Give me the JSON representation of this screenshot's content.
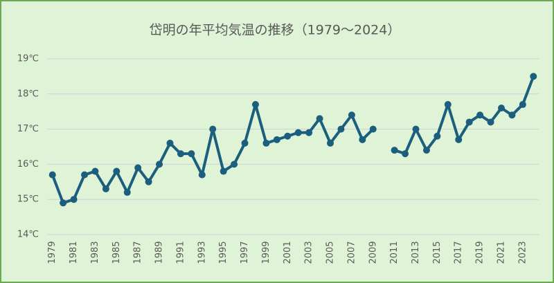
{
  "chart_data": {
    "type": "line",
    "title": "岱明の年平均気温の推移（1979～2024）",
    "categories": [
      "1979",
      null,
      "1981",
      null,
      "1983",
      null,
      "1985",
      null,
      "1987",
      null,
      "1989",
      null,
      "1991",
      null,
      "1993",
      null,
      "1995",
      null,
      "1997",
      null,
      "1999",
      null,
      "2001",
      null,
      "2003",
      null,
      "2005",
      null,
      "2007",
      null,
      "2009",
      null,
      "2011",
      null,
      "2013",
      null,
      "2015",
      null,
      "2017",
      null,
      "2019",
      null,
      "2021",
      null,
      "2023",
      null
    ],
    "series": [
      {
        "color": "#1b5e7e",
        "values": [
          15.7,
          14.9,
          15.0,
          15.7,
          15.8,
          15.3,
          15.8,
          15.2,
          15.9,
          15.5,
          16.0,
          16.6,
          16.3,
          16.3,
          15.7,
          17.0,
          15.8,
          16.0,
          16.6,
          17.7,
          16.6,
          16.7,
          16.8,
          16.9,
          16.9,
          17.3,
          16.6,
          17.0,
          17.4,
          16.7,
          17.0,
          null,
          16.4,
          16.3,
          17.0,
          16.4,
          16.8,
          17.7,
          16.7,
          17.2,
          17.4,
          17.2,
          17.6,
          17.4,
          17.7,
          18.5
        ]
      }
    ],
    "ylim": [
      14,
      19
    ],
    "yticks": [
      {
        "value": 14,
        "label": "14℃"
      },
      {
        "value": 15,
        "label": "15℃"
      },
      {
        "value": 16,
        "label": "16℃"
      },
      {
        "value": 17,
        "label": "17℃"
      },
      {
        "value": 18,
        "label": "18℃"
      },
      {
        "value": 19,
        "label": "19℃"
      }
    ],
    "grid": true
  }
}
